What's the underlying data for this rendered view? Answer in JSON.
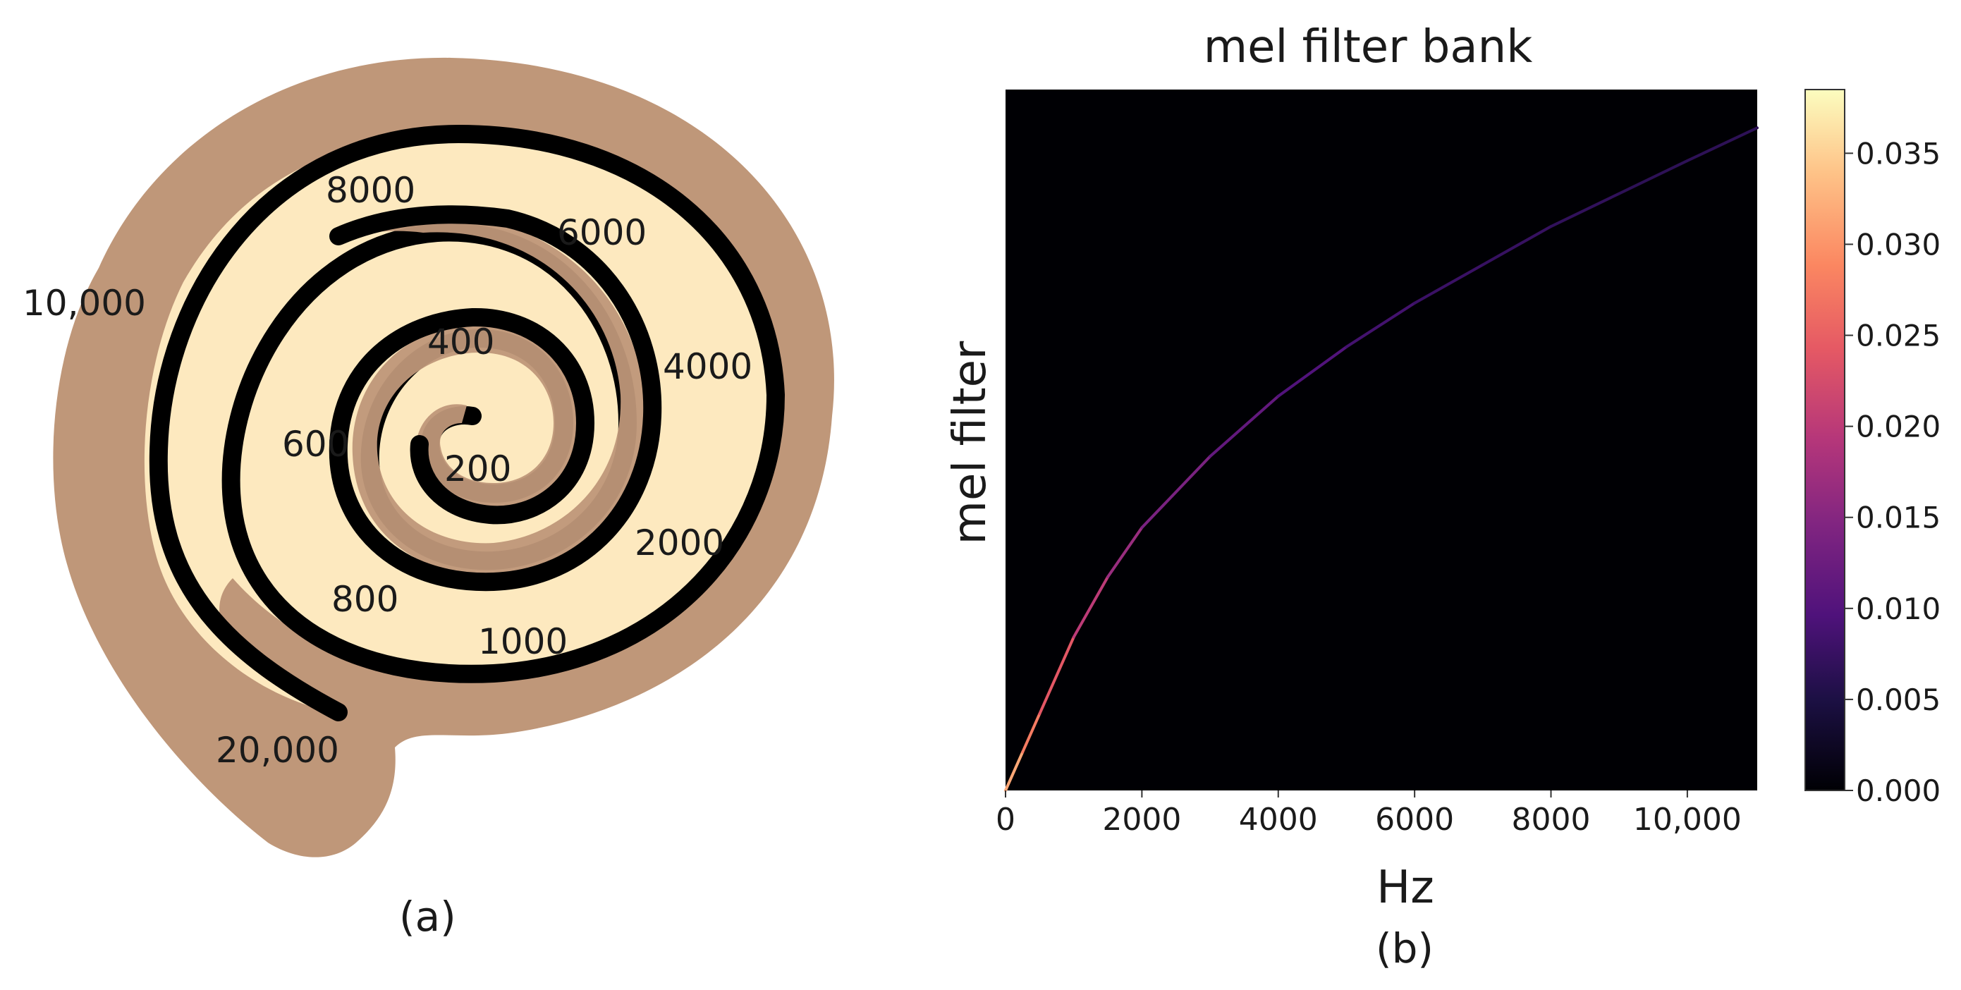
{
  "panel_a": {
    "caption": "(a)",
    "frequency_labels": [
      "20,000",
      "10,000",
      "8000",
      "6000",
      "4000",
      "2000",
      "1000",
      "800",
      "600",
      "400",
      "200"
    ]
  },
  "panel_b": {
    "caption": "(b)",
    "chart_data": {
      "type": "heatmap",
      "title": "mel filter bank",
      "xlabel": "Hz",
      "ylabel": "mel filter",
      "xlim": [
        0,
        11025
      ],
      "ylim": [
        0,
        128
      ],
      "xticks": [
        0,
        2000,
        4000,
        6000,
        8000,
        10000
      ],
      "xtick_labels": [
        "0",
        "2000",
        "4000",
        "6000",
        "8000",
        "10,000"
      ],
      "colormap": "magma",
      "colorbar": {
        "ticks": [
          0.0,
          0.005,
          0.01,
          0.015,
          0.02,
          0.025,
          0.03,
          0.035
        ],
        "tick_labels": [
          "0.000",
          "0.005",
          "0.010",
          "0.015",
          "0.020",
          "0.025",
          "0.030",
          "0.035"
        ],
        "range": [
          0,
          0.0385
        ]
      },
      "background_value": 0,
      "filters": 128,
      "curve": {
        "description_free": true,
        "hz": [
          0,
          250,
          500,
          1000,
          1500,
          2000,
          3000,
          4000,
          5000,
          6000,
          7000,
          8000,
          9000,
          10000,
          11025
        ],
        "filter_index": [
          0,
          7,
          14,
          28,
          39,
          48,
          61,
          72,
          81,
          89,
          96,
          103,
          109,
          115,
          121
        ],
        "peak_weight": [
          0.035,
          0.03,
          0.026,
          0.021,
          0.017,
          0.013,
          0.01,
          0.008,
          0.006,
          0.005,
          0.004,
          0.004,
          0.003,
          0.003,
          0.003
        ]
      }
    }
  }
}
